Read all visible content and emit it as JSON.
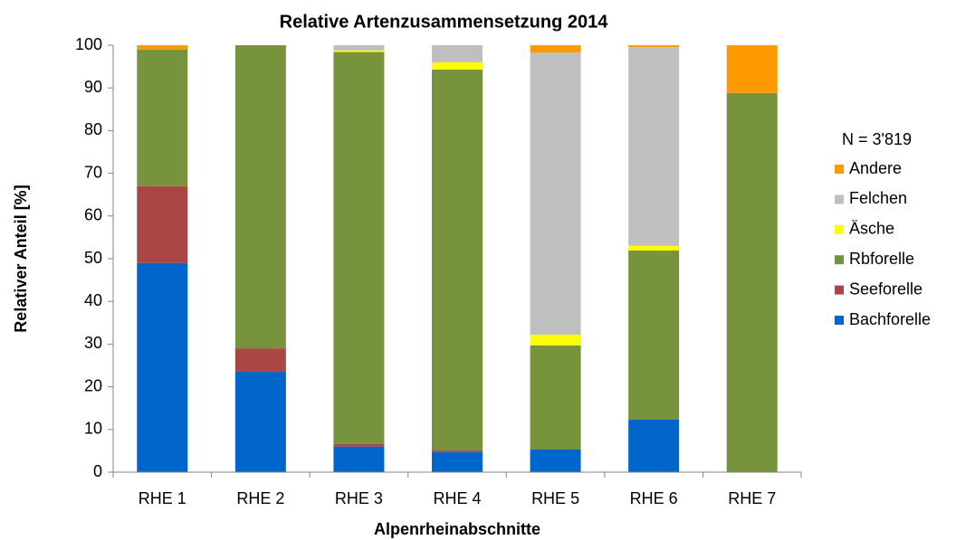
{
  "chart_data": {
    "type": "stacked_bar",
    "title": "Relative Artenzusammensetzung 2014",
    "x_label": "Alpenrheinabschnitte",
    "y_label": "Relativer Anteil [%]",
    "legend_title": "N = 3'819",
    "categories": [
      "RHE 1",
      "RHE 2",
      "RHE 3",
      "RHE 4",
      "RHE 5",
      "RHE 6",
      "RHE 7"
    ],
    "series": [
      {
        "name": "Bachforelle",
        "color": "#0066cc",
        "values": [
          49,
          23.5,
          6,
          4.7,
          5.3,
          12.3,
          0
        ]
      },
      {
        "name": "Seeforelle",
        "color": "#aa4644",
        "values": [
          18,
          5.5,
          0.6,
          0.4,
          0,
          0,
          0
        ]
      },
      {
        "name": "Rbforelle",
        "color": "#77933c",
        "values": [
          32,
          71,
          91.8,
          89.2,
          24.4,
          39.6,
          88.8
        ]
      },
      {
        "name": "Äsche",
        "color": "#ffff00",
        "values": [
          0,
          0,
          0.4,
          1.7,
          2.5,
          1.1,
          0
        ]
      },
      {
        "name": "Felchen",
        "color": "#bfbfbf",
        "values": [
          0,
          0,
          1.2,
          4,
          66.1,
          46.6,
          0
        ]
      },
      {
        "name": "Andere",
        "color": "#ff9900",
        "values": [
          1,
          0,
          0,
          0,
          1.7,
          0.4,
          11.2
        ]
      }
    ],
    "ylim": [
      0,
      100
    ],
    "yticks": [
      0,
      10,
      20,
      30,
      40,
      50,
      60,
      70,
      80,
      90,
      100
    ],
    "grid": false,
    "legend": "right"
  }
}
